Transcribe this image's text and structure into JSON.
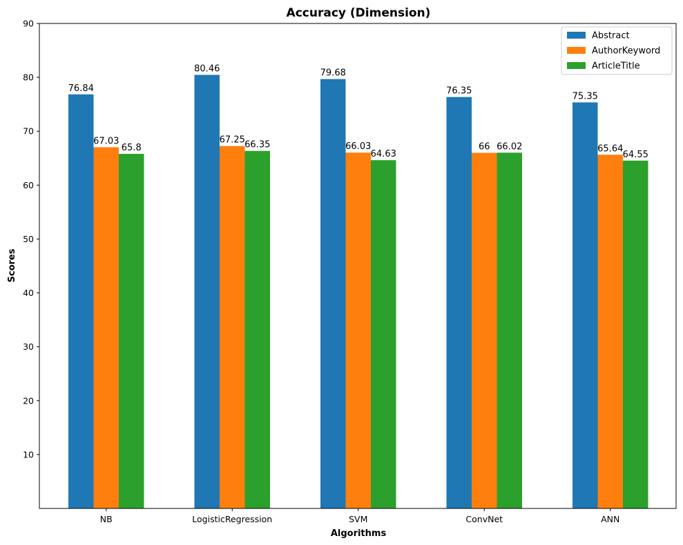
{
  "chart_data": {
    "type": "bar",
    "title": "Accuracy (Dimension)",
    "xlabel": "Algorithms",
    "ylabel": "Scores",
    "ylim": [
      0,
      90
    ],
    "yticks": [
      10,
      20,
      30,
      40,
      50,
      60,
      70,
      80,
      90
    ],
    "categories": [
      "NB",
      "LogisticRegression",
      "SVM",
      "ConvNet",
      "ANN"
    ],
    "series": [
      {
        "name": "Abstract",
        "color": "#1f77b4",
        "values": [
          76.84,
          80.46,
          79.68,
          76.35,
          75.35
        ],
        "labels": [
          "76.84",
          "80.46",
          "79.68",
          "76.35",
          "75.35"
        ]
      },
      {
        "name": "AuthorKeyword",
        "color": "#ff7f0e",
        "values": [
          67.03,
          67.25,
          66.03,
          66,
          65.64
        ],
        "labels": [
          "67.03",
          "67.25",
          "66.03",
          "66",
          "65.64"
        ]
      },
      {
        "name": "ArticleTitle",
        "color": "#2ca02c",
        "values": [
          65.8,
          66.35,
          64.63,
          66.02,
          64.55
        ],
        "labels": [
          "65.8",
          "66.35",
          "64.63",
          "66.02",
          "64.55"
        ]
      }
    ],
    "legend_position": "top-right",
    "grid": false
  }
}
